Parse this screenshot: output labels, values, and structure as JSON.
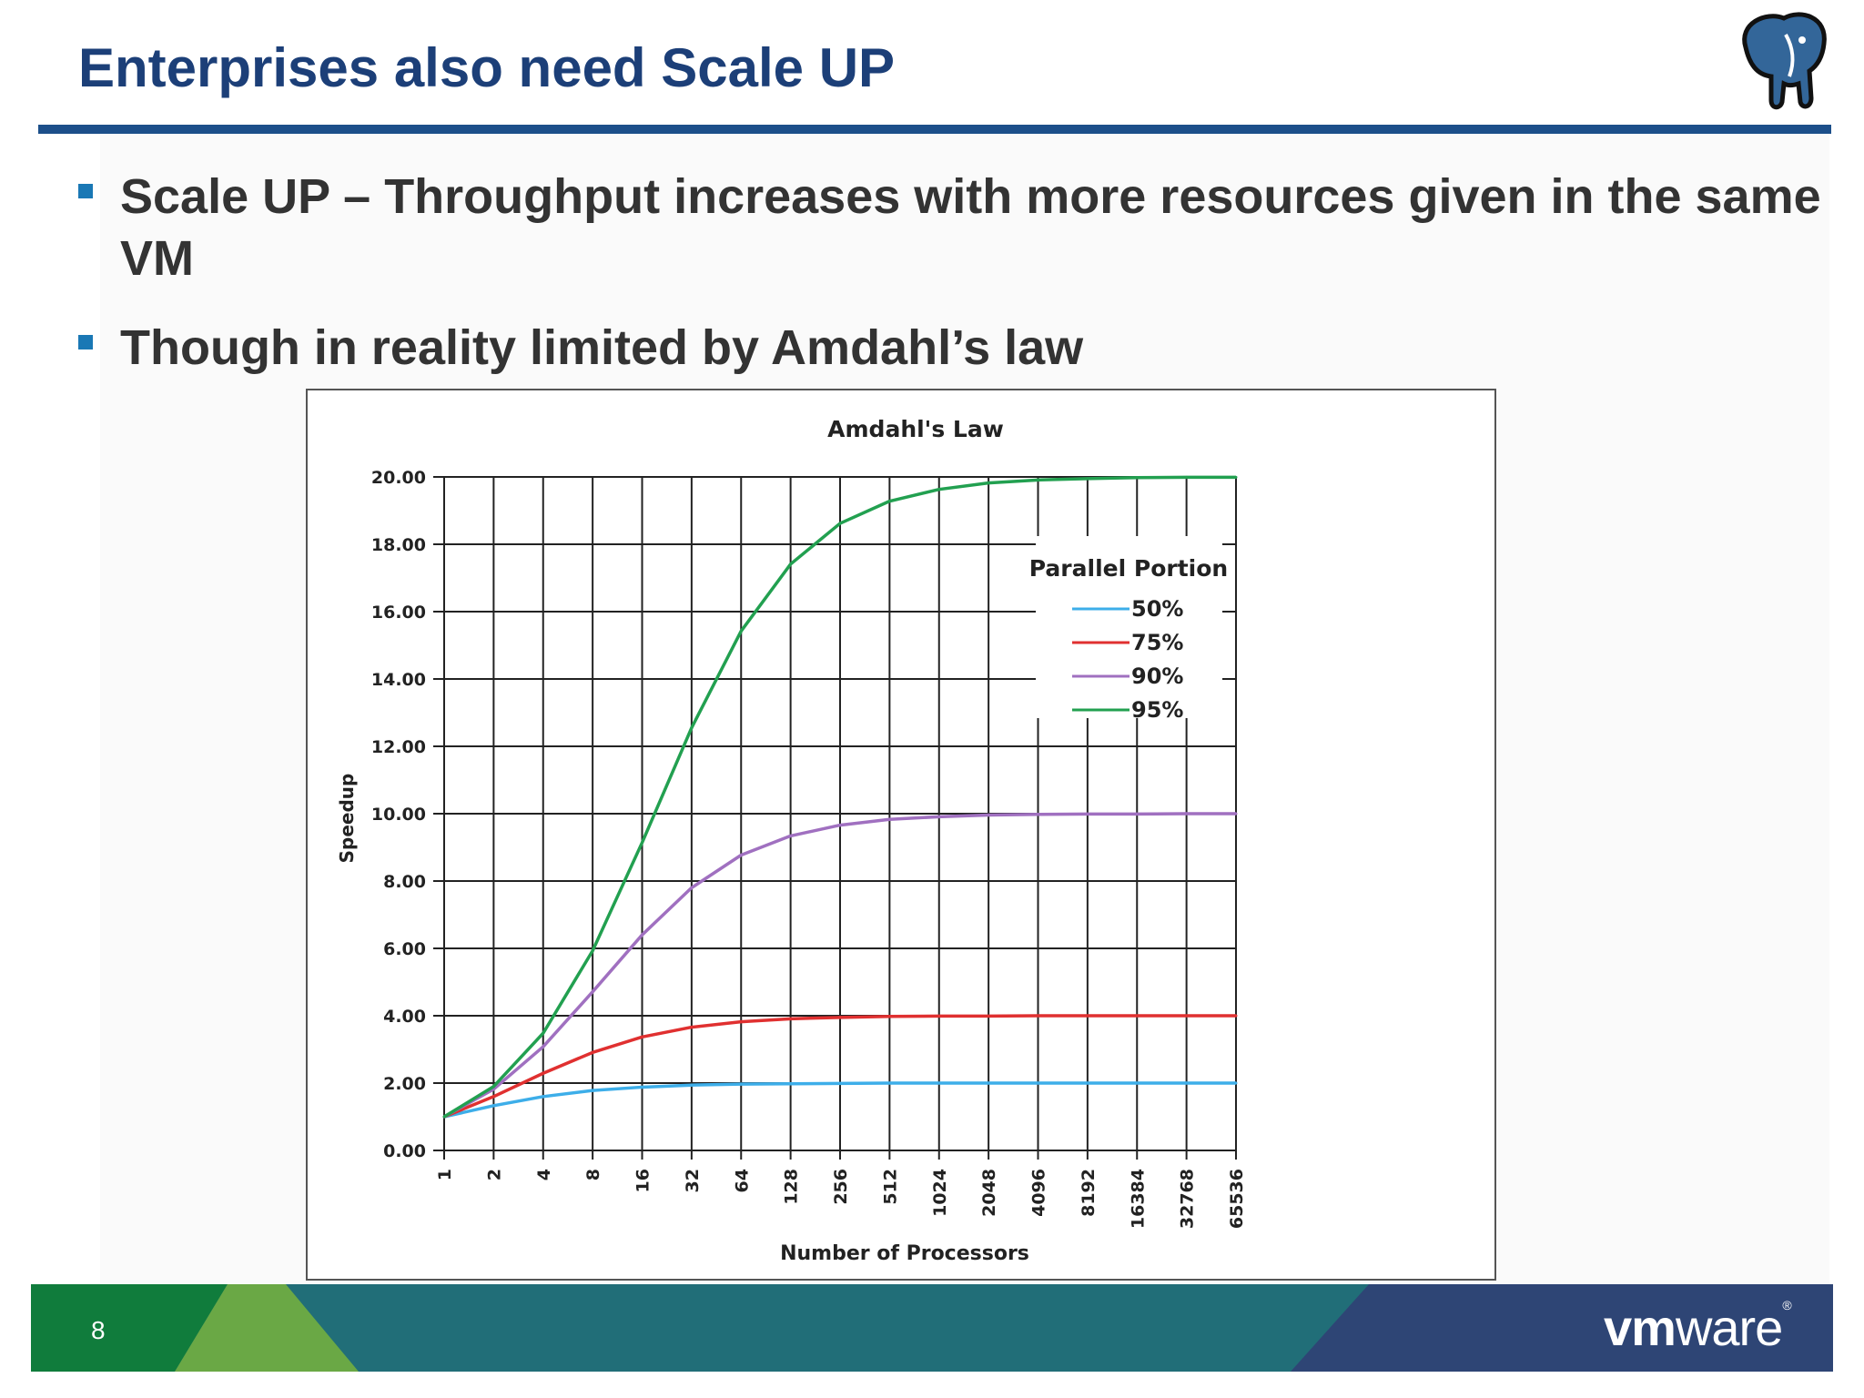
{
  "slide": {
    "title": "Enterprises also need Scale UP",
    "bullets": [
      "Scale UP – Throughput increases with more resources given in the same VM",
      "Though in reality limited by Amdahl’s law"
    ],
    "page_number": "8",
    "brand": {
      "vm": "vm",
      "ware": "ware",
      "reg": "®"
    },
    "colors": {
      "title": "#1c3f78",
      "bullet": "#1a78b5",
      "footer_green": "#107c3c",
      "footer_teal": "#216e78",
      "footer_navy": "#2e4575"
    },
    "logo": "postgresql-elephant-icon"
  },
  "chart_data": {
    "type": "line",
    "title": "Amdahl's Law",
    "xlabel": "Number of Processors",
    "ylabel": "Speedup",
    "categories": [
      "1",
      "2",
      "4",
      "8",
      "16",
      "32",
      "64",
      "128",
      "256",
      "512",
      "1024",
      "2048",
      "4096",
      "8192",
      "16384",
      "32768",
      "65536"
    ],
    "x_scale": "log2",
    "ylim": [
      0,
      20
    ],
    "yticks": [
      "0.00",
      "2.00",
      "4.00",
      "6.00",
      "8.00",
      "10.00",
      "12.00",
      "14.00",
      "16.00",
      "18.00",
      "20.00"
    ],
    "grid": true,
    "legend_title": "Parallel Portion",
    "legend_position": "top-right",
    "series": [
      {
        "name": "50%",
        "color": "#3daee9",
        "values": [
          1.0,
          1.33,
          1.6,
          1.78,
          1.88,
          1.94,
          1.97,
          1.98,
          1.99,
          2.0,
          2.0,
          2.0,
          2.0,
          2.0,
          2.0,
          2.0,
          2.0
        ]
      },
      {
        "name": "75%",
        "color": "#e03030",
        "values": [
          1.0,
          1.6,
          2.29,
          2.91,
          3.37,
          3.66,
          3.82,
          3.91,
          3.95,
          3.98,
          3.99,
          3.99,
          4.0,
          4.0,
          4.0,
          4.0,
          4.0
        ]
      },
      {
        "name": "90%",
        "color": "#a070c0",
        "values": [
          1.0,
          1.82,
          3.08,
          4.71,
          6.4,
          7.8,
          8.77,
          9.34,
          9.66,
          9.83,
          9.91,
          9.96,
          9.98,
          9.99,
          9.99,
          10.0,
          10.0
        ]
      },
      {
        "name": "95%",
        "color": "#22a050",
        "values": [
          1.0,
          1.9,
          3.48,
          5.93,
          9.14,
          12.55,
          15.42,
          17.41,
          18.62,
          19.28,
          19.63,
          19.82,
          19.91,
          19.95,
          19.98,
          19.99,
          19.99
        ]
      }
    ]
  }
}
